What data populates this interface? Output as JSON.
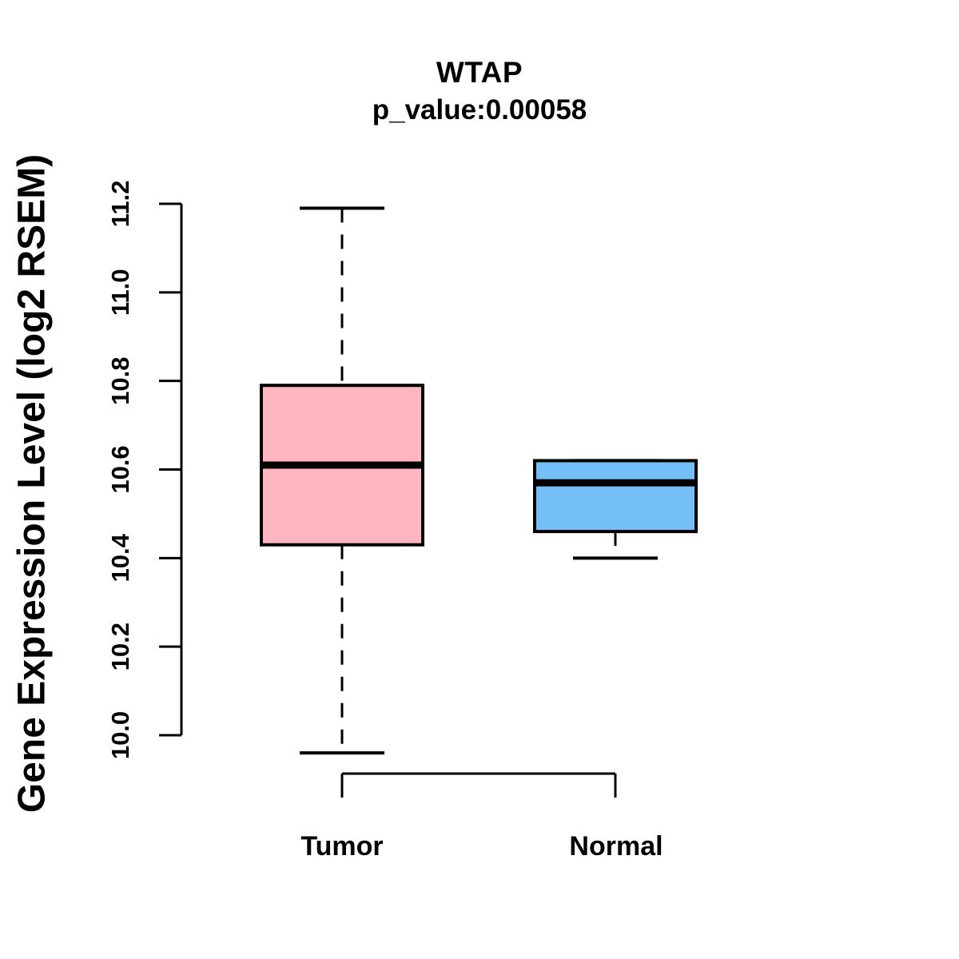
{
  "title": "WTAP",
  "subtitle": "p_value:0.00058",
  "ylabel": "Gene Expression Level (log2 RSEM)",
  "chart_data": {
    "type": "boxplot",
    "title": "WTAP",
    "subtitle": "p_value:0.00058",
    "xlabel": "",
    "ylabel": "Gene Expression Level (log2 RSEM)",
    "categories": [
      "Tumor",
      "Normal"
    ],
    "ylim": [
      10.0,
      11.2
    ],
    "ytick_labels": [
      "10.0",
      "10.2",
      "10.4",
      "10.6",
      "10.8",
      "11.0",
      "11.2"
    ],
    "grid": false,
    "legend": "none",
    "series": [
      {
        "name": "Tumor",
        "min": 9.96,
        "q1": 10.43,
        "median": 10.61,
        "q3": 10.79,
        "max": 11.19,
        "fill_color": "#FFB6C1",
        "whisker_style": "dashed"
      },
      {
        "name": "Normal",
        "min": 10.4,
        "q1": 10.46,
        "median": 10.57,
        "q3": 10.62,
        "max": 10.62,
        "fill_color": "#74BFF8",
        "whisker_style": "dashed"
      }
    ],
    "colors": {
      "stroke": "#000000",
      "background": "#FFFFFF",
      "tumor_fill": "#FFB6C1",
      "normal_fill": "#74BFF8"
    }
  }
}
